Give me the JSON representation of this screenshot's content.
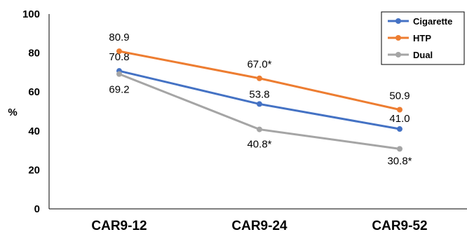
{
  "chart_data": {
    "type": "line",
    "title": "",
    "xlabel": "",
    "ylabel": "%",
    "categories": [
      "CAR9-12",
      "CAR9-24",
      "CAR9-52"
    ],
    "ylim": [
      0,
      100
    ],
    "yticks": [
      "0",
      "20",
      "40",
      "60",
      "80",
      "100"
    ],
    "grid": false,
    "legend_position": "top-right",
    "series": [
      {
        "name": "Cigarette",
        "color": "#4472C4",
        "values": [
          70.8,
          53.8,
          41.0
        ],
        "labels": [
          "70.8",
          "53.8",
          "41.0"
        ]
      },
      {
        "name": "HTP",
        "color": "#ED7D31",
        "values": [
          80.9,
          67.0,
          50.9
        ],
        "labels": [
          "80.9",
          "67.0*",
          "50.9"
        ]
      },
      {
        "name": "Dual",
        "color": "#A5A5A5",
        "values": [
          69.2,
          40.8,
          30.8
        ],
        "labels": [
          "69.2",
          "40.8*",
          "30.8*"
        ]
      }
    ]
  }
}
